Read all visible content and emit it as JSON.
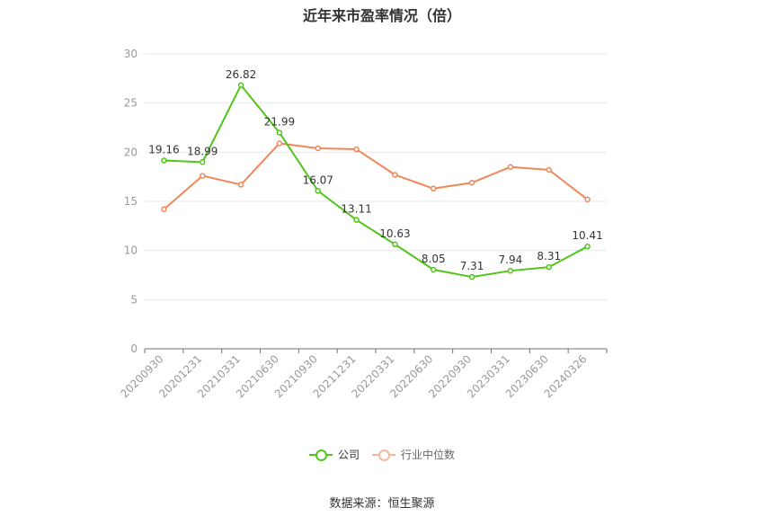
{
  "chart_data": {
    "type": "line",
    "title": "近年来市盈率情况（倍）",
    "categories": [
      "20200930",
      "20201231",
      "20210331",
      "20210630",
      "20210930",
      "20211231",
      "20220331",
      "20220630",
      "20220930",
      "20230331",
      "20230630",
      "20240326"
    ],
    "ylim": [
      0,
      30
    ],
    "yticks": [
      0,
      5,
      10,
      15,
      20,
      25,
      30
    ],
    "grid": true,
    "legend_position": "bottom",
    "series": [
      {
        "name": "公司",
        "color": "#52c41a",
        "values": [
          19.16,
          18.99,
          26.82,
          21.99,
          16.07,
          13.11,
          10.63,
          8.05,
          7.31,
          7.94,
          8.31,
          10.41
        ],
        "labels": [
          "19.16",
          "18.99",
          "26.82",
          "21.99",
          "16.07",
          "13.11",
          "10.63",
          "8.05",
          "7.31",
          "7.94",
          "8.31",
          "10.41"
        ]
      },
      {
        "name": "行业中位数",
        "color": "#f0875a",
        "values": [
          14.2,
          17.6,
          16.7,
          20.9,
          20.4,
          20.3,
          17.7,
          16.3,
          16.9,
          18.5,
          18.2,
          15.2
        ]
      }
    ]
  },
  "source": "数据来源：恒生聚源"
}
